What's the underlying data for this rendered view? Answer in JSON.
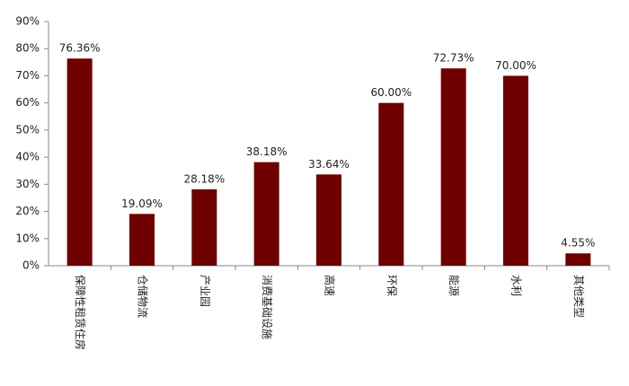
{
  "chart_data": {
    "type": "bar",
    "categories": [
      "保障性租赁住房",
      "仓储物流",
      "产业园",
      "消费基础设施",
      "高速",
      "环保",
      "能源",
      "水利",
      "其他类型"
    ],
    "values": [
      76.36,
      19.09,
      28.18,
      38.18,
      33.64,
      60.0,
      72.73,
      70.0,
      4.55
    ],
    "value_labels": [
      "76.36%",
      "19.09%",
      "28.18%",
      "38.18%",
      "33.64%",
      "60.00%",
      "72.73%",
      "70.00%",
      "4.55%"
    ],
    "color": "#6e0000",
    "ylim": [
      0,
      90
    ],
    "yticks": [
      {
        "value": 0,
        "label": "0%"
      },
      {
        "value": 10,
        "label": "10%"
      },
      {
        "value": 20,
        "label": "20%"
      },
      {
        "value": 30,
        "label": "30%"
      },
      {
        "value": 40,
        "label": "40%"
      },
      {
        "value": 50,
        "label": "50%"
      },
      {
        "value": 60,
        "label": "60%"
      },
      {
        "value": 70,
        "label": "70%"
      },
      {
        "value": 80,
        "label": "80%"
      },
      {
        "value": 90,
        "label": "90%"
      }
    ],
    "grid": false
  }
}
